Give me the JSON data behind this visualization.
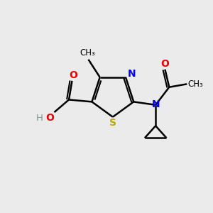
{
  "background_color": "#ebebeb",
  "atom_colors": {
    "C": "#000000",
    "H": "#7a9a9a",
    "N": "#0000ee",
    "O": "#ee0000",
    "S": "#bbaa00"
  },
  "figsize": [
    3.0,
    3.0
  ],
  "dpi": 100
}
